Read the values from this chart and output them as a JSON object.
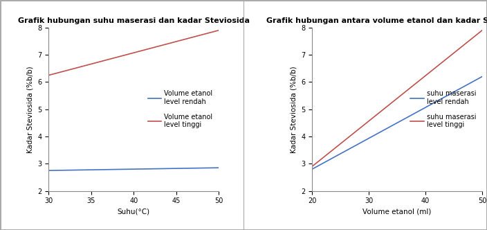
{
  "chart1": {
    "title": "Grafik hubungan suhu maserasi dan kadar Steviosida",
    "xlabel": "Suhu(°C)",
    "ylabel": "Kadar Steviosida (%b/b)",
    "xlim": [
      30,
      50
    ],
    "ylim": [
      2,
      8
    ],
    "xticks": [
      30,
      35,
      40,
      45,
      50
    ],
    "yticks": [
      2,
      3,
      4,
      5,
      6,
      7,
      8
    ],
    "line1": {
      "x": [
        30,
        50
      ],
      "y": [
        2.75,
        2.85
      ],
      "color": "#4472C4",
      "label": "Volume etanol\nlevel rendah"
    },
    "line2": {
      "x": [
        30,
        50
      ],
      "y": [
        6.25,
        7.9
      ],
      "color": "#C0504D",
      "label": "Volume etanol\nlevel tinggi"
    }
  },
  "chart2": {
    "title": "Grafik hubungan antara volume etanol dan kadar Steviosida",
    "xlabel": "Volume etanol (ml)",
    "ylabel": "Kadar Steviosida (%b/b)",
    "xlim": [
      20,
      50
    ],
    "ylim": [
      2,
      8
    ],
    "xticks": [
      20,
      30,
      40,
      50
    ],
    "yticks": [
      2,
      3,
      4,
      5,
      6,
      7,
      8
    ],
    "line1": {
      "x": [
        20,
        50
      ],
      "y": [
        2.8,
        6.2
      ],
      "color": "#4472C4",
      "label": "suhu maserasi\nlevel rendah"
    },
    "line2": {
      "x": [
        20,
        50
      ],
      "y": [
        2.9,
        7.9
      ],
      "color": "#C0504D",
      "label": "suhu maserasi\nlevel tinggi"
    }
  },
  "bg_color": "#ffffff",
  "panel_bg": "#ffffff",
  "border_color": "#aaaaaa",
  "title_fontsize": 8,
  "label_fontsize": 7.5,
  "tick_fontsize": 7,
  "legend_fontsize": 7,
  "line_width": 1.2
}
